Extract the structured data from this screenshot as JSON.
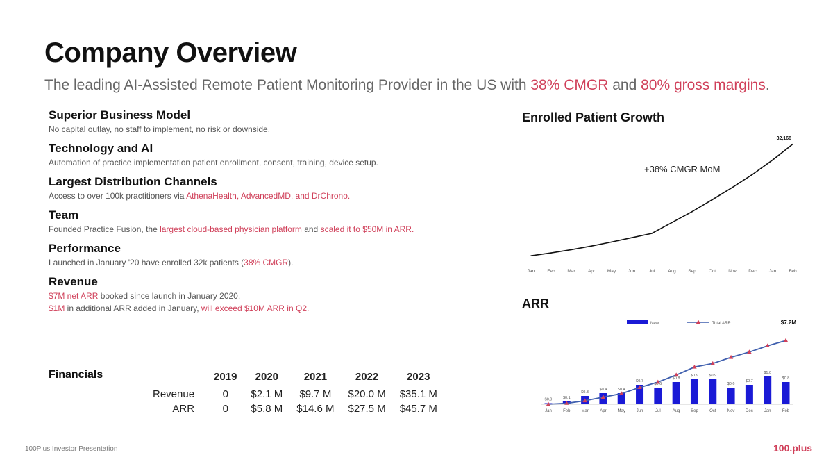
{
  "page": {
    "title": "Company Overview",
    "subtitle": {
      "prefix": "The leading AI-Assisted Remote Patient Monitoring Provider in the US with ",
      "cmgr": "38% CMGR",
      "middle": " and ",
      "margins": "80% gross margins",
      "suffix": "."
    }
  },
  "sections": [
    {
      "heading": "Superior Business Model",
      "lines": [
        [
          {
            "t": "No capital outlay, no staff to implement, no risk or downside."
          }
        ]
      ]
    },
    {
      "heading": "Technology and AI",
      "lines": [
        [
          {
            "t": "Automation of practice implementation patient enrollment, consent, training, device setup."
          }
        ]
      ]
    },
    {
      "heading": "Largest Distribution Channels",
      "lines": [
        [
          {
            "t": "Access to over 100k practitioners via "
          },
          {
            "t": "AthenaHealth, AdvancedMD, and DrChrono.",
            "a": true
          }
        ]
      ]
    },
    {
      "heading": "Team",
      "lines": [
        [
          {
            "t": "Founded Practice Fusion, the "
          },
          {
            "t": "largest cloud-based physician platform",
            "a": true
          },
          {
            "t": " and "
          },
          {
            "t": "scaled it to $50M in ARR.",
            "a": true
          }
        ]
      ]
    },
    {
      "heading": "Performance",
      "lines": [
        [
          {
            "t": "Launched in January '20 have enrolled 32k patients ("
          },
          {
            "t": "38% CMGR",
            "a": true
          },
          {
            "t": ")."
          }
        ]
      ]
    },
    {
      "heading": "Revenue",
      "lines": [
        [
          {
            "t": "$7M net ARR",
            "a": true
          },
          {
            "t": " booked since launch in January 2020."
          }
        ],
        [
          {
            "t": "$1M",
            "a": true
          },
          {
            "t": " in additional ARR added in January, "
          },
          {
            "t": "will exceed $10M ARR in Q2.",
            "a": true
          }
        ]
      ]
    }
  ],
  "financials": {
    "label": "Financials",
    "years": [
      "2019",
      "2020",
      "2021",
      "2022",
      "2023"
    ],
    "rows": [
      {
        "label": "Revenue",
        "values": [
          "0",
          "$2.1 M",
          "$9.7 M",
          "$20.0 M",
          "$35.1 M"
        ]
      },
      {
        "label": "ARR",
        "values": [
          "0",
          "$5.8 M",
          "$14.6 M",
          "$27.5 M",
          "$45.7 M"
        ]
      }
    ]
  },
  "footer": {
    "left": "100Plus Investor Presentation",
    "right": "100.plus"
  },
  "colors": {
    "accent": "#d0405a",
    "bar": "#1a1ad6",
    "line": "#3f5fae",
    "marker": "#d0405a"
  },
  "chart_data": [
    {
      "type": "line",
      "title": "Enrolled Patient Growth",
      "x": [
        "Jan",
        "Feb",
        "Mar",
        "Apr",
        "May",
        "Jun",
        "Jul",
        "Aug",
        "Sep",
        "Oct",
        "Nov",
        "Dec",
        "Jan",
        "Feb"
      ],
      "series": [
        {
          "values": [
            1300,
            2100,
            3000,
            4000,
            5100,
            6300,
            7500,
            10500,
            13500,
            16800,
            20200,
            23800,
            27800,
            32168
          ]
        }
      ],
      "annotations": [
        "+38% CMGR MoM",
        "32,168"
      ],
      "ylim": [
        0,
        34000
      ],
      "grid": false
    },
    {
      "type": "bar",
      "title": "ARR",
      "categories": [
        "Jan",
        "Feb",
        "Mar",
        "Apr",
        "May",
        "Jun",
        "Jul",
        "Aug",
        "Sep",
        "Oct",
        "Nov",
        "Dec",
        "Jan",
        "Feb"
      ],
      "series": [
        {
          "name": "New",
          "values": [
            0.0,
            0.1,
            0.3,
            0.4,
            0.4,
            0.7,
            0.6,
            0.8,
            0.9,
            0.9,
            0.6,
            0.7,
            1.0,
            0.8
          ]
        },
        {
          "name": "Total ARR",
          "values": [
            0.0,
            0.1,
            0.4,
            0.8,
            1.2,
            1.9,
            2.5,
            3.3,
            4.2,
            4.6,
            5.3,
            5.9,
            6.6,
            7.2
          ]
        }
      ],
      "bar_labels": [
        "$0.0",
        "$0.1",
        "$0.3",
        "$0.4",
        "$0.4",
        "$0.7",
        "$0.6",
        "$0.8",
        "$0.9",
        "$0.9",
        "$0.6",
        "$0.7",
        "$1.0",
        "$0.8"
      ],
      "end_label": "$7.2M",
      "legend": "top"
    }
  ]
}
